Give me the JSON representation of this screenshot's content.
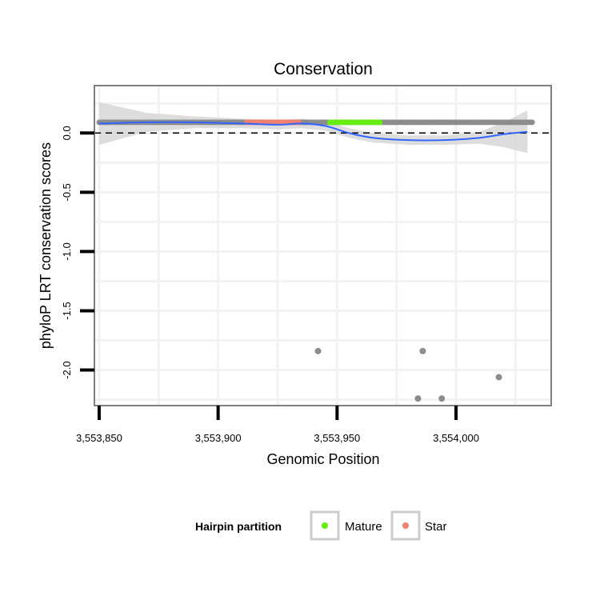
{
  "chart_data": {
    "type": "scatter",
    "title": "Conservation",
    "xlabel": "Genomic Position",
    "ylabel": "phyloP LRT conservation scores",
    "xlim": [
      3553848,
      3554040
    ],
    "ylim": [
      -2.3,
      0.4
    ],
    "x_ticks": [
      3553850,
      3553900,
      3553950,
      3554000
    ],
    "x_tick_labels": [
      "3,553,850",
      "3,553,900",
      "3,553,950",
      "3,554,000"
    ],
    "y_ticks": [
      0.0,
      -0.5,
      -1.0,
      -1.5,
      -2.0
    ],
    "y_tick_labels": [
      "0.0",
      "-0.5",
      "-1.0",
      "-1.5",
      "-2.0"
    ],
    "reference_line_y": 0.0,
    "legend": {
      "title": "Hairpin partition",
      "position": "bottom",
      "items": [
        {
          "label": "Mature",
          "color": "#66ee11"
        },
        {
          "label": "Star",
          "color": "#f08070"
        }
      ]
    },
    "colors": {
      "point": "#8c8c8c",
      "mature": "#66ee11",
      "star": "#f08070",
      "smooth": "#3366ff",
      "ribbon": "#d9d9d9",
      "grid": "#f2f2f2",
      "panel_border": "#7f7f7f"
    },
    "baseline_points": {
      "x_range": [
        3553850,
        3554032
      ],
      "step": 1,
      "y": 0.09
    },
    "partitions": [
      {
        "name": "Star",
        "x_range": [
          3553912,
          3553934
        ],
        "y": 0.09
      },
      {
        "name": "Mature",
        "x_range": [
          3553947,
          3553968
        ],
        "y": 0.09
      }
    ],
    "outliers": [
      {
        "x": 3553942,
        "y": -1.84
      },
      {
        "x": 3553984,
        "y": -2.24
      },
      {
        "x": 3553986,
        "y": -1.84
      },
      {
        "x": 3553994,
        "y": -2.24
      },
      {
        "x": 3554018,
        "y": -2.06
      }
    ],
    "smooth_line": {
      "x": [
        3553850,
        3553870,
        3553890,
        3553910,
        3553925,
        3553935,
        3553945,
        3553955,
        3553965,
        3553980,
        3553995,
        3554010,
        3554020,
        3554030
      ],
      "y": [
        0.08,
        0.09,
        0.09,
        0.08,
        0.07,
        0.08,
        0.06,
        0.0,
        -0.04,
        -0.06,
        -0.06,
        -0.04,
        -0.01,
        0.01
      ],
      "lower": [
        -0.1,
        0.01,
        0.04,
        0.04,
        0.03,
        0.04,
        0.02,
        -0.04,
        -0.08,
        -0.1,
        -0.1,
        -0.09,
        -0.12,
        -0.17
      ],
      "upper": [
        0.26,
        0.17,
        0.14,
        0.12,
        0.11,
        0.12,
        0.1,
        0.04,
        0.0,
        -0.02,
        -0.02,
        0.01,
        0.09,
        0.19
      ]
    }
  }
}
